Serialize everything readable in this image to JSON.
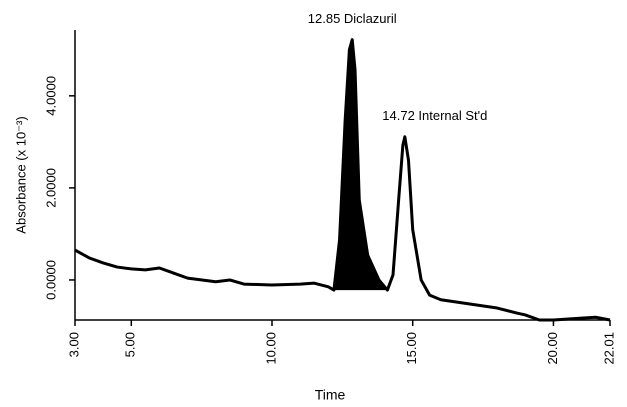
{
  "chart_data": {
    "type": "line",
    "x_label": "Time",
    "y_label": "Absorbance (x 10⁻³)",
    "x": [
      3.0,
      3.5,
      4.0,
      4.5,
      5.0,
      5.5,
      6.0,
      6.5,
      7.0,
      8.0,
      8.5,
      9.0,
      10.0,
      11.0,
      11.5,
      12.0,
      12.2,
      12.4,
      12.6,
      12.75,
      12.85,
      12.95,
      13.1,
      13.4,
      13.8,
      14.1,
      14.3,
      14.5,
      14.65,
      14.72,
      14.85,
      15.0,
      15.3,
      15.6,
      16.0,
      17.0,
      18.0,
      18.7,
      19.0,
      19.5,
      20.0,
      21.0,
      21.5,
      22.01
    ],
    "series": [
      {
        "color": "#000000",
        "values": [
          0.65,
          0.48,
          0.37,
          0.28,
          0.24,
          0.22,
          0.26,
          0.15,
          0.04,
          -0.04,
          0.0,
          -0.09,
          -0.11,
          -0.09,
          -0.07,
          -0.15,
          -0.22,
          0.87,
          3.48,
          5.0,
          5.22,
          4.57,
          1.74,
          0.54,
          0.0,
          -0.22,
          0.11,
          1.74,
          2.93,
          3.11,
          2.6,
          1.09,
          0.0,
          -0.33,
          -0.43,
          -0.52,
          -0.61,
          -0.72,
          -0.76,
          -0.87,
          -0.87,
          -0.83,
          -0.81,
          -0.87
        ]
      }
    ],
    "annotations": [
      {
        "text": "12.85 Diclazuril",
        "x": 12.85,
        "shaded": true
      },
      {
        "text": "14.72 Internal St'd",
        "x": 14.72,
        "shaded": false
      }
    ],
    "xlim": [
      3.0,
      22.01
    ],
    "xticks": [
      {
        "value": 3.0,
        "label": "3.00"
      },
      {
        "value": 5.0,
        "label": "5.00"
      },
      {
        "value": 10.0,
        "label": "10.00"
      },
      {
        "value": 15.0,
        "label": "15.00"
      },
      {
        "value": 20.0,
        "label": "20.00"
      },
      {
        "value": 22.01,
        "label": "22.01"
      }
    ],
    "ylim": [
      -0.87,
      5.43
    ],
    "yticks": [
      {
        "value": 0,
        "label": "0.0000"
      },
      {
        "value": 2,
        "label": "2.0000"
      },
      {
        "value": 4,
        "label": "4.0000"
      }
    ]
  }
}
